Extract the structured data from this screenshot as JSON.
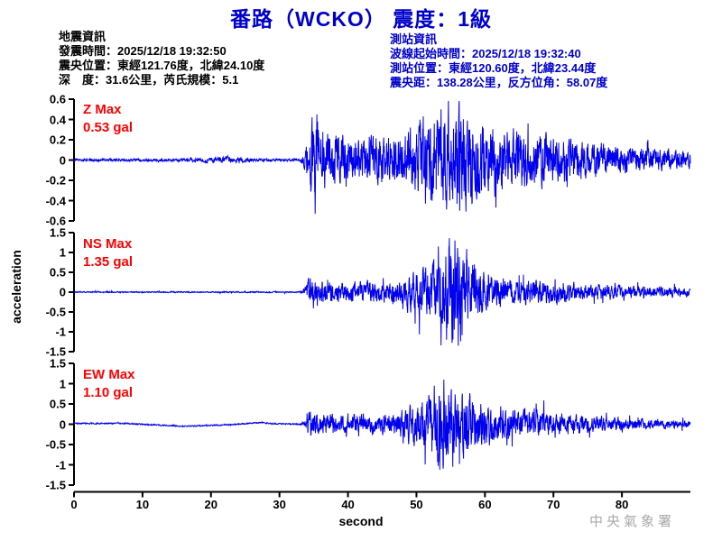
{
  "title": "番路（WCKO） 震度：1級",
  "quake_info": {
    "heading": "地震資訊",
    "lines": [
      "發震時間：2025/12/18 19:32:50",
      "震央位置：東經121.76度，北緯24.10度",
      "深　度：31.6公里，芮氏規模：5.1"
    ]
  },
  "station_info": {
    "heading": "測站資訊",
    "lines": [
      "波線起始時間：2025/12/18 19:32:40",
      "測站位置：東經120.60度，北緯23.44度",
      "震央距：138.28公里，反方位角：58.07度"
    ]
  },
  "watermark": "中央氣象署",
  "colors": {
    "title_blue": "#0000CC",
    "station_info_blue": "#0000CC",
    "waveform_blue": "#0000EE",
    "max_label_red": "#FF0000",
    "axis_black": "#000000",
    "watermark_gray": "#A9A9A9"
  },
  "chart_data": {
    "type": "line",
    "xlabel": "second",
    "ylabel": "acceleration",
    "x_range": [
      0,
      90
    ],
    "x_ticks": [
      0,
      10,
      20,
      30,
      40,
      50,
      60,
      70,
      80
    ],
    "grid": false,
    "unit": "gal",
    "event_onset_s": 34,
    "subplots": [
      {
        "channel": "Z",
        "max_label": "Z Max",
        "max_value_label": "0.53 gal",
        "max_gal": 0.53,
        "ylim": [
          -0.6,
          0.6
        ],
        "yticks": [
          0.6,
          0.4,
          0.2,
          0,
          -0.2,
          -0.4,
          -0.6
        ],
        "envelope": [
          [
            0,
            0.012
          ],
          [
            15,
            0.012
          ],
          [
            18,
            0.02
          ],
          [
            22,
            0.035
          ],
          [
            26,
            0.015
          ],
          [
            33,
            0.012
          ],
          [
            33.8,
            0.1
          ],
          [
            34.3,
            0.32
          ],
          [
            35.2,
            0.5
          ],
          [
            36,
            0.3
          ],
          [
            38,
            0.24
          ],
          [
            41,
            0.22
          ],
          [
            44,
            0.26
          ],
          [
            47,
            0.24
          ],
          [
            49,
            0.3
          ],
          [
            51,
            0.42
          ],
          [
            53,
            0.48
          ],
          [
            55,
            0.45
          ],
          [
            56.5,
            0.5
          ],
          [
            58,
            0.42
          ],
          [
            60,
            0.36
          ],
          [
            63,
            0.3
          ],
          [
            66,
            0.26
          ],
          [
            70,
            0.22
          ],
          [
            74,
            0.18
          ],
          [
            78,
            0.15
          ],
          [
            82,
            0.12
          ],
          [
            86,
            0.1
          ],
          [
            90,
            0.09
          ]
        ],
        "spikes": [
          [
            35.2,
            -0.53
          ],
          [
            35.45,
            0.45
          ],
          [
            53.6,
            0.5
          ],
          [
            56.3,
            -0.5
          ]
        ],
        "baseline": [
          [
            0,
            0
          ],
          [
            90,
            0
          ]
        ]
      },
      {
        "channel": "NS",
        "max_label": "NS Max",
        "max_value_label": "1.35 gal",
        "max_gal": 1.35,
        "ylim": [
          -1.5,
          1.5
        ],
        "yticks": [
          1.5,
          1,
          0.5,
          0,
          -0.5,
          -1,
          -1.5
        ],
        "envelope": [
          [
            0,
            0.015
          ],
          [
            33,
            0.015
          ],
          [
            33.8,
            0.12
          ],
          [
            34.2,
            0.38
          ],
          [
            35,
            0.32
          ],
          [
            37,
            0.26
          ],
          [
            40,
            0.24
          ],
          [
            43,
            0.26
          ],
          [
            46,
            0.28
          ],
          [
            48,
            0.35
          ],
          [
            50,
            0.5
          ],
          [
            52,
            0.75
          ],
          [
            53.5,
            1.0
          ],
          [
            55,
            1.25
          ],
          [
            56,
            1.3
          ],
          [
            57,
            1.1
          ],
          [
            58,
            0.9
          ],
          [
            59,
            0.7
          ],
          [
            60,
            0.5
          ],
          [
            62,
            0.4
          ],
          [
            64,
            0.35
          ],
          [
            67,
            0.3
          ],
          [
            70,
            0.27
          ],
          [
            74,
            0.22
          ],
          [
            78,
            0.18
          ],
          [
            82,
            0.15
          ],
          [
            86,
            0.13
          ],
          [
            90,
            0.11
          ]
        ],
        "spikes": [
          [
            53.2,
            1.15
          ],
          [
            54.4,
            -1.2
          ],
          [
            55.6,
            1.3
          ],
          [
            56.1,
            -1.35
          ]
        ],
        "baseline": [
          [
            0,
            0
          ],
          [
            90,
            0
          ]
        ]
      },
      {
        "channel": "EW",
        "max_label": "EW Max",
        "max_value_label": "1.10 gal",
        "max_gal": 1.1,
        "ylim": [
          -1.5,
          1.5
        ],
        "yticks": [
          1.5,
          1,
          0.5,
          0,
          -0.5,
          -1,
          -1.5
        ],
        "envelope": [
          [
            0,
            0.015
          ],
          [
            33,
            0.015
          ],
          [
            33.8,
            0.12
          ],
          [
            34.2,
            0.3
          ],
          [
            35,
            0.26
          ],
          [
            37,
            0.22
          ],
          [
            40,
            0.2
          ],
          [
            43,
            0.22
          ],
          [
            46,
            0.26
          ],
          [
            48,
            0.32
          ],
          [
            50,
            0.5
          ],
          [
            51.5,
            0.75
          ],
          [
            53,
            0.95
          ],
          [
            54,
            1.0
          ],
          [
            55,
            0.9
          ],
          [
            56,
            0.8
          ],
          [
            57.5,
            0.7
          ],
          [
            59,
            0.6
          ],
          [
            60.5,
            0.5
          ],
          [
            62,
            0.45
          ],
          [
            64,
            0.4
          ],
          [
            66,
            0.33
          ],
          [
            68,
            0.28
          ],
          [
            71,
            0.25
          ],
          [
            74,
            0.22
          ],
          [
            78,
            0.18
          ],
          [
            82,
            0.14
          ],
          [
            86,
            0.11
          ],
          [
            90,
            0.09
          ]
        ],
        "spikes": [
          [
            52.6,
            0.95
          ],
          [
            54.0,
            1.1
          ],
          [
            55.3,
            -1.05
          ]
        ],
        "baseline": [
          [
            0,
            0.02
          ],
          [
            8,
            0.02
          ],
          [
            12,
            -0.02
          ],
          [
            16,
            -0.05
          ],
          [
            20,
            -0.03
          ],
          [
            24,
            0
          ],
          [
            27,
            0.04
          ],
          [
            30,
            0.01
          ],
          [
            33,
            0
          ],
          [
            90,
            0
          ]
        ]
      }
    ]
  }
}
